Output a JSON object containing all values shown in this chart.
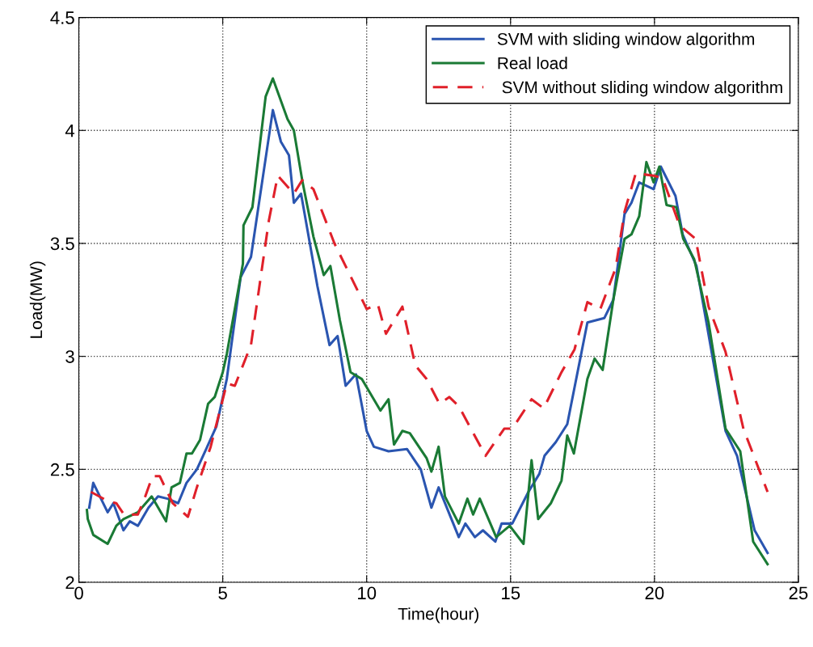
{
  "chart_data": {
    "type": "line",
    "xlabel": "Time(hour)",
    "ylabel": "Load(MW)",
    "xlim": [
      0,
      25
    ],
    "xticks": [
      0,
      5,
      10,
      15,
      20,
      25
    ],
    "ylim": [
      2,
      4.5
    ],
    "yticks": [
      2,
      2.5,
      3,
      3.5,
      4,
      4.5
    ],
    "grid": true,
    "legend": "top right",
    "series": [
      {
        "name": "SVM with sliding window algorithm",
        "color": "#2a55b0",
        "line_style": "solid",
        "x": [
          0.36,
          0.5,
          1.0,
          1.2,
          1.55,
          1.77,
          2.05,
          2.42,
          2.75,
          3.08,
          3.45,
          3.74,
          4.1,
          4.39,
          4.78,
          5.14,
          5.62,
          5.98,
          6.74,
          7.02,
          7.3,
          7.47,
          7.72,
          8.29,
          8.71,
          8.99,
          9.27,
          9.55,
          9.63,
          10.0,
          10.25,
          10.76,
          11.4,
          11.88,
          12.25,
          12.5,
          13.2,
          13.43,
          13.76,
          14.04,
          14.47,
          14.69,
          15.06,
          15.62,
          16.0,
          16.18,
          16.57,
          16.97,
          17.67,
          18.26,
          18.57,
          18.96,
          19.2,
          19.47,
          19.97,
          20.22,
          20.73,
          20.98,
          21.46,
          22.47,
          22.87,
          23.48,
          23.93
        ],
        "values": [
          2.33,
          2.44,
          2.31,
          2.35,
          2.23,
          2.27,
          2.25,
          2.33,
          2.38,
          2.37,
          2.35,
          2.44,
          2.5,
          2.58,
          2.69,
          2.9,
          3.35,
          3.44,
          4.09,
          3.95,
          3.89,
          3.68,
          3.72,
          3.31,
          3.05,
          3.09,
          2.87,
          2.91,
          2.92,
          2.67,
          2.6,
          2.58,
          2.59,
          2.5,
          2.33,
          2.42,
          2.2,
          2.26,
          2.2,
          2.23,
          2.18,
          2.26,
          2.26,
          2.4,
          2.48,
          2.56,
          2.62,
          2.7,
          3.15,
          3.17,
          3.25,
          3.63,
          3.68,
          3.77,
          3.74,
          3.84,
          3.71,
          3.54,
          3.4,
          2.67,
          2.56,
          2.23,
          2.13
        ]
      },
      {
        "name": "Real load",
        "color": "#1a7a35",
        "line_style": "solid",
        "x": [
          0.28,
          0.31,
          0.5,
          1.0,
          1.3,
          1.55,
          2.05,
          2.53,
          3.03,
          3.22,
          3.51,
          3.74,
          3.93,
          4.21,
          4.49,
          4.72,
          5.0,
          5.14,
          5.7,
          5.72,
          6.03,
          6.49,
          6.74,
          7.25,
          7.47,
          7.76,
          8.15,
          8.51,
          8.74,
          9.07,
          9.44,
          9.83,
          10.48,
          10.76,
          10.95,
          11.24,
          11.5,
          12.08,
          12.25,
          12.5,
          12.72,
          13.2,
          13.5,
          13.7,
          13.93,
          14.5,
          14.97,
          15.45,
          15.73,
          15.96,
          16.4,
          16.77,
          16.97,
          17.2,
          17.67,
          17.92,
          18.2,
          18.57,
          18.96,
          19.2,
          19.47,
          19.72,
          19.97,
          20.17,
          20.42,
          20.76,
          21.0,
          21.38,
          21.88,
          22.47,
          22.98,
          23.43,
          23.93
        ],
        "values": [
          2.32,
          2.28,
          2.21,
          2.17,
          2.25,
          2.28,
          2.31,
          2.38,
          2.27,
          2.42,
          2.44,
          2.57,
          2.57,
          2.63,
          2.79,
          2.82,
          2.93,
          3.01,
          3.41,
          3.58,
          3.66,
          4.15,
          4.23,
          4.05,
          4.0,
          3.78,
          3.53,
          3.36,
          3.4,
          3.16,
          2.93,
          2.9,
          2.76,
          2.81,
          2.61,
          2.67,
          2.66,
          2.55,
          2.49,
          2.6,
          2.38,
          2.26,
          2.37,
          2.3,
          2.37,
          2.2,
          2.25,
          2.17,
          2.54,
          2.28,
          2.35,
          2.45,
          2.65,
          2.57,
          2.9,
          2.99,
          2.94,
          3.25,
          3.52,
          3.54,
          3.62,
          3.86,
          3.77,
          3.84,
          3.67,
          3.66,
          3.52,
          3.43,
          3.15,
          2.68,
          2.58,
          2.18,
          2.08
        ]
      },
      {
        "name": " SVM without sliding window algorithm",
        "color": "#e0202a",
        "line_style": "dashed",
        "x": [
          0.42,
          1.0,
          1.3,
          1.57,
          2.05,
          2.28,
          2.56,
          2.81,
          3.26,
          3.79,
          4.1,
          4.58,
          5.14,
          5.42,
          5.98,
          6.6,
          6.91,
          7.47,
          7.76,
          8.15,
          8.88,
          10.0,
          10.39,
          10.67,
          11.24,
          11.69,
          12.08,
          12.53,
          12.87,
          13.2,
          14.13,
          14.78,
          15.06,
          15.73,
          16.15,
          16.77,
          17.22,
          17.67,
          18.12,
          18.65,
          18.96,
          19.35,
          19.97,
          20.28,
          20.87,
          21.43,
          21.88,
          22.47,
          23.09,
          23.93
        ],
        "values": [
          2.4,
          2.36,
          2.35,
          2.3,
          2.3,
          2.37,
          2.47,
          2.47,
          2.35,
          2.29,
          2.42,
          2.6,
          2.88,
          2.87,
          3.05,
          3.6,
          3.8,
          3.72,
          3.78,
          3.74,
          3.5,
          3.21,
          3.23,
          3.1,
          3.22,
          2.96,
          2.9,
          2.79,
          2.82,
          2.78,
          2.56,
          2.68,
          2.68,
          2.81,
          2.77,
          2.93,
          3.03,
          3.24,
          3.21,
          3.39,
          3.64,
          3.81,
          3.8,
          3.79,
          3.58,
          3.52,
          3.22,
          3.02,
          2.68,
          2.4
        ]
      }
    ]
  }
}
